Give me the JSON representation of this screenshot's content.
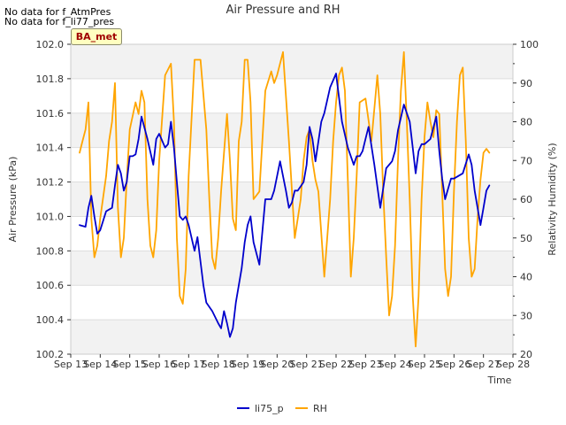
{
  "notices": [
    "No data for f_AtmPres",
    "No data for f_li77_pres"
  ],
  "badge": "BA_met",
  "chart_data": {
    "type": "line",
    "title": "Air Pressure and RH",
    "xlabel": "Time",
    "ylabel_left": "Air Pressure (kPa)",
    "ylabel_right": "Relativity Humidity (%)",
    "x_ticks": [
      "Sep 13",
      "Sep 14",
      "Sep 15",
      "Sep 16",
      "Sep 17",
      "Sep 18",
      "Sep 19",
      "Sep 20",
      "Sep 21",
      "Sep 22",
      "Sep 23",
      "Sep 24",
      "Sep 25",
      "Sep 26",
      "Sep 27",
      "Sep 28"
    ],
    "xlim": [
      13,
      28
    ],
    "ylim_left": [
      100.2,
      102.0
    ],
    "yticks_left": [
      "100.2",
      "100.4",
      "100.6",
      "100.8",
      "101.0",
      "101.2",
      "101.4",
      "101.6",
      "101.8",
      "102.0"
    ],
    "ylim_right": [
      20,
      100
    ],
    "yticks_right": [
      "20",
      "30",
      "40",
      "50",
      "60",
      "70",
      "80",
      "90",
      "100"
    ],
    "grid": "horizontal bands",
    "legend_position": "bottom-center",
    "series": [
      {
        "name": "li75_p",
        "color": "#0000cc",
        "axis": "left",
        "x": [
          13.3,
          13.5,
          13.6,
          13.7,
          13.8,
          13.9,
          14.0,
          14.2,
          14.4,
          14.5,
          14.6,
          14.7,
          14.8,
          14.9,
          15.0,
          15.1,
          15.2,
          15.3,
          15.4,
          15.6,
          15.8,
          15.9,
          16.0,
          16.2,
          16.3,
          16.4,
          16.5,
          16.6,
          16.7,
          16.8,
          16.9,
          17.0,
          17.2,
          17.3,
          17.5,
          17.6,
          17.8,
          18.0,
          18.1,
          18.2,
          18.3,
          18.4,
          18.5,
          18.6,
          18.8,
          18.9,
          19.0,
          19.1,
          19.2,
          19.4,
          19.6,
          19.8,
          19.9,
          20.1,
          20.3,
          20.4,
          20.5,
          20.6,
          20.7,
          20.9,
          21.0,
          21.1,
          21.2,
          21.3,
          21.5,
          21.6,
          21.8,
          22.0,
          22.2,
          22.4,
          22.6,
          22.7,
          22.8,
          22.9,
          23.0,
          23.1,
          23.3,
          23.5,
          23.7,
          23.9,
          24.0,
          24.1,
          24.3,
          24.5,
          24.6,
          24.7,
          24.8,
          24.9,
          25.0,
          25.2,
          25.4,
          25.5,
          25.6,
          25.7,
          25.9,
          26.0,
          26.1,
          26.3,
          26.5,
          26.6,
          26.7,
          26.8,
          26.9,
          27.0,
          27.1,
          27.2
        ],
        "values": [
          100.95,
          100.94,
          101.05,
          101.12,
          101.0,
          100.9,
          100.92,
          101.03,
          101.05,
          101.18,
          101.3,
          101.25,
          101.15,
          101.2,
          101.35,
          101.35,
          101.36,
          101.45,
          101.58,
          101.45,
          101.3,
          101.45,
          101.48,
          101.4,
          101.42,
          101.55,
          101.4,
          101.2,
          101.0,
          100.98,
          101.0,
          100.95,
          100.8,
          100.88,
          100.6,
          100.5,
          100.45,
          100.38,
          100.35,
          100.45,
          100.38,
          100.3,
          100.35,
          100.5,
          100.7,
          100.85,
          100.95,
          101.0,
          100.85,
          100.72,
          101.1,
          101.1,
          101.15,
          101.32,
          101.15,
          101.05,
          101.08,
          101.15,
          101.15,
          101.2,
          101.3,
          101.52,
          101.45,
          101.32,
          101.55,
          101.6,
          101.75,
          101.83,
          101.55,
          101.4,
          101.3,
          101.35,
          101.35,
          101.38,
          101.45,
          101.52,
          101.3,
          101.05,
          101.28,
          101.32,
          101.38,
          101.5,
          101.65,
          101.55,
          101.4,
          101.25,
          101.38,
          101.42,
          101.42,
          101.45,
          101.58,
          101.38,
          101.22,
          101.1,
          101.22,
          101.22,
          101.23,
          101.25,
          101.36,
          101.3,
          101.15,
          101.05,
          100.95,
          101.05,
          101.15,
          101.18
        ]
      },
      {
        "name": "RH",
        "color": "#ffa500",
        "axis": "right",
        "x": [
          13.3,
          13.4,
          13.5,
          13.6,
          13.7,
          13.8,
          13.9,
          14.0,
          14.2,
          14.3,
          14.4,
          14.5,
          14.6,
          14.7,
          14.8,
          14.9,
          15.0,
          15.2,
          15.3,
          15.4,
          15.5,
          15.6,
          15.7,
          15.8,
          15.9,
          16.0,
          16.2,
          16.4,
          16.5,
          16.6,
          16.7,
          16.8,
          16.9,
          17.0,
          17.2,
          17.4,
          17.6,
          17.7,
          17.8,
          17.9,
          18.0,
          18.1,
          18.2,
          18.3,
          18.4,
          18.5,
          18.6,
          18.7,
          18.8,
          18.9,
          19.0,
          19.1,
          19.2,
          19.4,
          19.6,
          19.8,
          19.9,
          20.0,
          20.2,
          20.4,
          20.6,
          20.7,
          20.8,
          20.9,
          21.0,
          21.1,
          21.2,
          21.3,
          21.4,
          21.6,
          21.7,
          21.8,
          21.9,
          22.0,
          22.1,
          22.2,
          22.3,
          22.4,
          22.5,
          22.6,
          22.7,
          22.8,
          23.0,
          23.2,
          23.4,
          23.5,
          23.6,
          23.7,
          23.8,
          23.9,
          24.0,
          24.1,
          24.2,
          24.3,
          24.4,
          24.5,
          24.6,
          24.7,
          24.8,
          24.9,
          25.0,
          25.1,
          25.2,
          25.3,
          25.4,
          25.5,
          25.6,
          25.7,
          25.8,
          25.9,
          26.0,
          26.1,
          26.2,
          26.3,
          26.4,
          26.5,
          26.6,
          26.7,
          26.8,
          26.9,
          27.0,
          27.1,
          27.2
        ],
        "values": [
          72,
          75,
          78,
          85,
          55,
          45,
          48,
          55,
          66,
          75,
          80,
          90,
          58,
          45,
          50,
          65,
          78,
          85,
          82,
          88,
          85,
          60,
          48,
          45,
          52,
          70,
          92,
          95,
          80,
          50,
          35,
          33,
          42,
          66,
          96,
          96,
          78,
          60,
          45,
          42,
          50,
          62,
          72,
          82,
          70,
          55,
          52,
          75,
          80,
          96,
          96,
          85,
          60,
          62,
          88,
          93,
          90,
          92,
          98,
          75,
          50,
          55,
          60,
          70,
          76,
          78,
          70,
          65,
          62,
          40,
          50,
          60,
          75,
          85,
          92,
          94,
          88,
          65,
          40,
          50,
          66,
          85,
          86,
          75,
          92,
          82,
          62,
          45,
          30,
          35,
          48,
          70,
          88,
          98,
          80,
          60,
          35,
          22,
          35,
          60,
          76,
          85,
          80,
          76,
          83,
          82,
          62,
          42,
          35,
          40,
          62,
          80,
          92,
          94,
          75,
          50,
          40,
          42,
          55,
          65,
          72,
          73,
          72
        ]
      }
    ]
  }
}
